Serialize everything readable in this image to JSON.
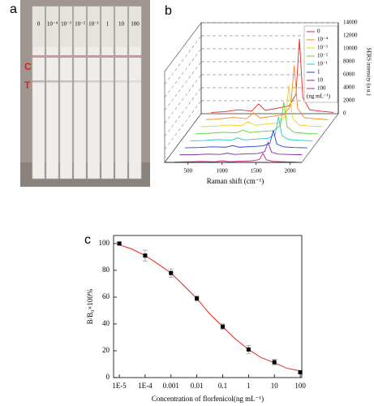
{
  "panel_a": {
    "label": "a",
    "strip_labels": [
      "0",
      "10⁻⁴",
      "10⁻³",
      "10⁻²",
      "10⁻¹",
      "1",
      "10",
      "100"
    ],
    "band_labels": [
      "C",
      "T"
    ]
  },
  "chart_data": [
    {
      "type": "line",
      "panel_label": "b",
      "x_label": "Raman shift (cm⁻¹)",
      "y_label": "SERS intensity (a.u.)",
      "legend_title": "(ng mL⁻¹)",
      "x": [
        300,
        500,
        700,
        900,
        1000,
        1100,
        1300,
        1450,
        1550,
        1600,
        1650,
        1750,
        1900,
        2100
      ],
      "series": [
        {
          "name": "0",
          "color": "#e8261f",
          "values": [
            200,
            300,
            600,
            400,
            1500,
            500,
            900,
            1200,
            3000,
            11500,
            2500,
            600,
            400,
            200
          ]
        },
        {
          "name": "10⁻⁴",
          "color": "#f08a1c",
          "values": [
            150,
            250,
            500,
            300,
            1200,
            400,
            700,
            900,
            2300,
            8500,
            1900,
            450,
            300,
            150
          ]
        },
        {
          "name": "10⁻³",
          "color": "#e6d21a",
          "values": [
            150,
            200,
            400,
            300,
            900,
            350,
            600,
            700,
            1800,
            6500,
            1500,
            400,
            250,
            150
          ]
        },
        {
          "name": "10⁻²",
          "color": "#5fd12e",
          "values": [
            100,
            200,
            350,
            250,
            700,
            300,
            500,
            600,
            1400,
            5000,
            1200,
            350,
            200,
            100
          ]
        },
        {
          "name": "10⁻¹",
          "color": "#2ec9c4",
          "values": [
            100,
            150,
            300,
            200,
            550,
            250,
            400,
            500,
            1100,
            3800,
            900,
            300,
            200,
            100
          ]
        },
        {
          "name": "1",
          "color": "#2a3fd6",
          "values": [
            100,
            150,
            250,
            200,
            450,
            200,
            300,
            400,
            800,
            2800,
            700,
            250,
            150,
            100
          ]
        },
        {
          "name": "10",
          "color": "#7b2aa8",
          "values": [
            100,
            100,
            200,
            150,
            350,
            150,
            250,
            300,
            600,
            2000,
            500,
            200,
            150,
            100
          ]
        },
        {
          "name": "100",
          "color": "#c2247a",
          "values": [
            50,
            100,
            150,
            100,
            250,
            100,
            200,
            250,
            450,
            1400,
            400,
            150,
            100,
            50
          ]
        }
      ],
      "xlim": [
        300,
        2100
      ],
      "xticks": [
        500,
        1000,
        1500,
        2000
      ],
      "ylim": [
        0,
        14000
      ],
      "yticks": [
        0,
        2000,
        4000,
        6000,
        8000,
        10000,
        12000,
        14000
      ],
      "grid": true
    },
    {
      "type": "scatter",
      "panel_label": "c",
      "x_label": "Concentration of florfenicol(ng mL⁻¹)",
      "y_label": "B/B₀×100%",
      "log_x": true,
      "series": [
        {
          "color": "#000000",
          "error_color": "#999999",
          "x": [
            1e-05,
            0.0001,
            0.001,
            0.01,
            0.1,
            1,
            10,
            100
          ],
          "values": [
            100,
            91,
            78,
            59,
            38,
            21,
            11.5,
            4
          ],
          "errors": [
            1,
            4,
            3,
            2,
            2,
            3,
            2,
            1
          ]
        },
        {
          "color": "#e0261e",
          "x": [
            1e-05,
            3e-05,
            0.0001,
            0.0003,
            0.001,
            0.003,
            0.01,
            0.03,
            0.1,
            0.3,
            1,
            3,
            10,
            30,
            100
          ],
          "values": [
            99,
            96,
            91,
            85,
            78,
            69,
            59,
            48,
            38,
            29,
            21,
            15,
            11,
            7,
            5
          ]
        }
      ],
      "xlim": [
        6e-06,
        115
      ],
      "xticks": [
        {
          "value": 1e-05,
          "label": "1E-5"
        },
        {
          "value": 0.0001,
          "label": "1E-4"
        },
        0.001,
        0.01,
        0.1,
        1,
        10,
        100
      ],
      "ylim": [
        0,
        106
      ],
      "yticks": [
        0,
        20,
        40,
        60,
        80,
        100
      ]
    }
  ]
}
